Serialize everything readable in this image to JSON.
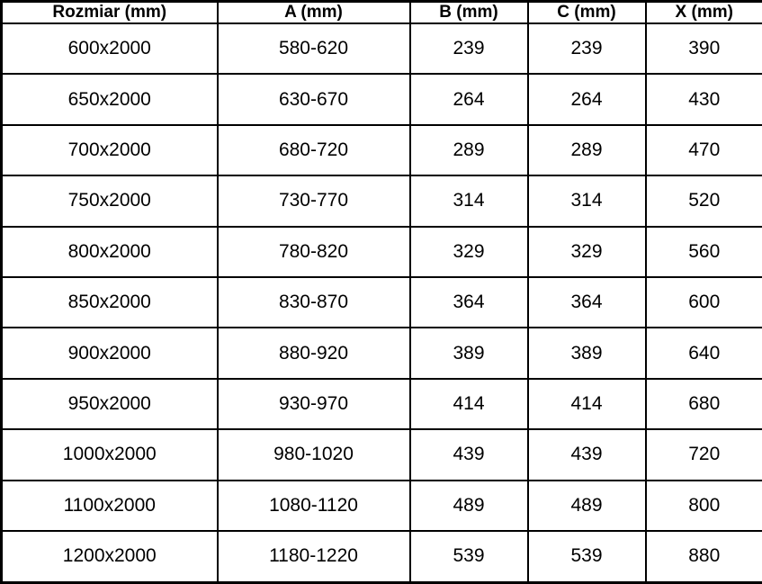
{
  "table": {
    "columns": [
      "Rozmiar (mm)",
      "A (mm)",
      "B (mm)",
      "C (mm)",
      "X (mm)"
    ],
    "rows": [
      [
        "600x2000",
        "580-620",
        "239",
        "239",
        "390"
      ],
      [
        "650x2000",
        "630-670",
        "264",
        "264",
        "430"
      ],
      [
        "700x2000",
        "680-720",
        "289",
        "289",
        "470"
      ],
      [
        "750x2000",
        "730-770",
        "314",
        "314",
        "520"
      ],
      [
        "800x2000",
        "780-820",
        "329",
        "329",
        "560"
      ],
      [
        "850x2000",
        "830-870",
        "364",
        "364",
        "600"
      ],
      [
        "900x2000",
        "880-920",
        "389",
        "389",
        "640"
      ],
      [
        "950x2000",
        "930-970",
        "414",
        "414",
        "680"
      ],
      [
        "1000x2000",
        "980-1020",
        "439",
        "439",
        "720"
      ],
      [
        "1100x2000",
        "1080-1120",
        "489",
        "489",
        "800"
      ],
      [
        "1200x2000",
        "1180-1220",
        "539",
        "539",
        "880"
      ]
    ]
  },
  "colors": {
    "border": "#000000",
    "background": "#ffffff",
    "text": "#000000"
  }
}
